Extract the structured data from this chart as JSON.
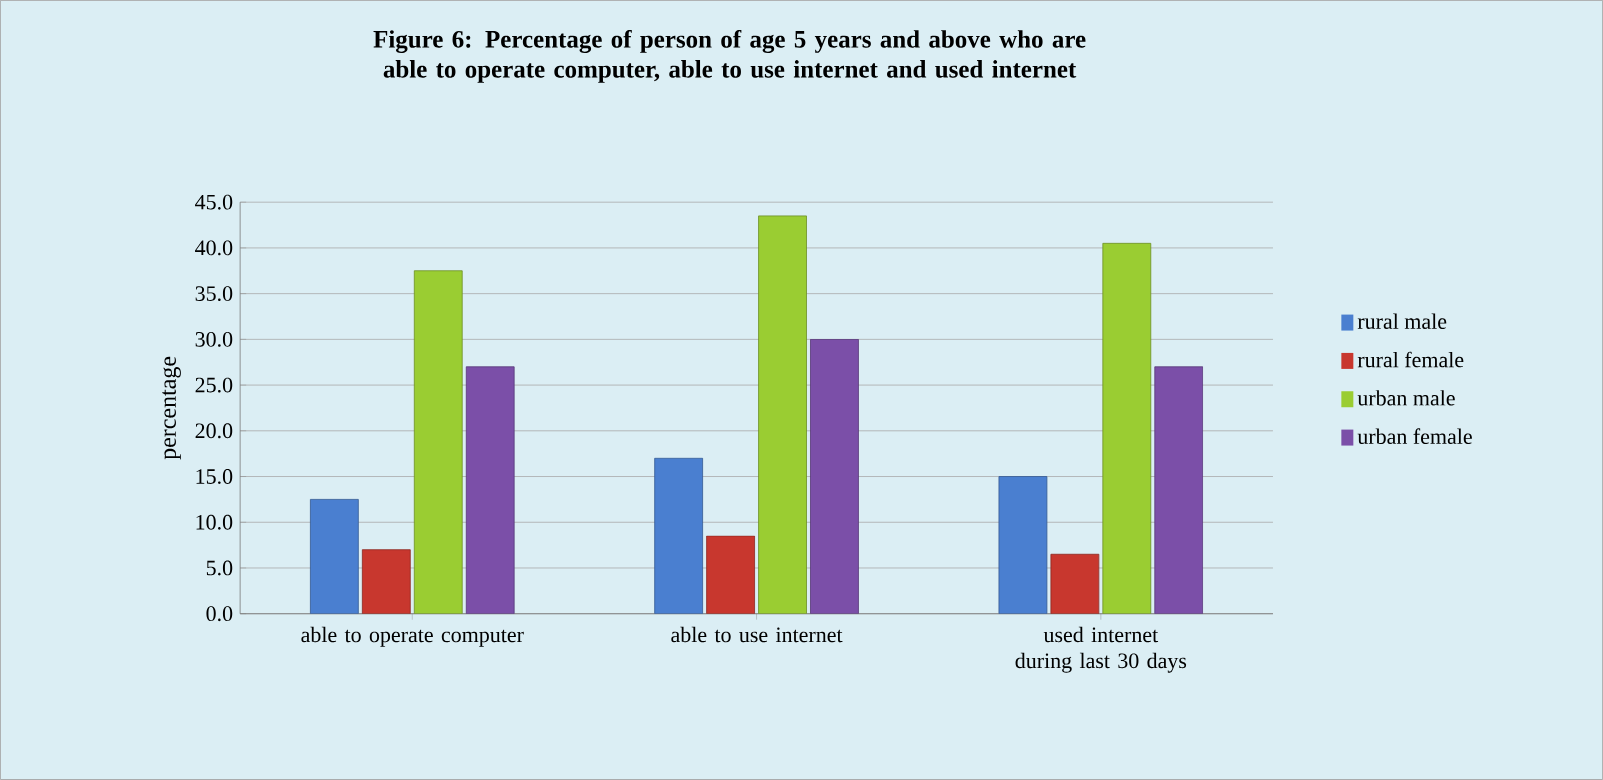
{
  "chart_data": {
    "type": "bar",
    "title": "Figure 6: Percentage of person of age 5 years and above who are able to operate computer, able to use internet and used internet",
    "categories": [
      "able to operate computer",
      "able to use internet",
      "used internet during last 30 days"
    ],
    "ylabel": "percentage",
    "series": [
      {
        "name": "rural male",
        "color": "#4a7fd0",
        "values": [
          12.5,
          17,
          15
        ]
      },
      {
        "name": "rural female",
        "color": "#c8372e",
        "values": [
          7,
          8.5,
          6.5
        ]
      },
      {
        "name": "urban  male",
        "color": "#9acd32",
        "values": [
          37.5,
          43.5,
          40.5
        ]
      },
      {
        "name": "urban  female",
        "color": "#7b4fa8",
        "values": [
          27,
          30,
          27
        ]
      }
    ],
    "ylim": [
      0,
      45
    ],
    "yticks": [
      {
        "value": 0,
        "label": "0.0"
      },
      {
        "value": 5,
        "label": "5.0"
      },
      {
        "value": 10,
        "label": "10.0"
      },
      {
        "value": 15,
        "label": "15.0"
      },
      {
        "value": 20,
        "label": "20.0"
      },
      {
        "value": 25,
        "label": "25.0"
      },
      {
        "value": 30,
        "label": "30.0"
      },
      {
        "value": 35,
        "label": "35.0"
      },
      {
        "value": 40,
        "label": "40.0"
      },
      {
        "value": 45,
        "label": "45.0"
      }
    ],
    "grid": "y",
    "legend": "right"
  }
}
